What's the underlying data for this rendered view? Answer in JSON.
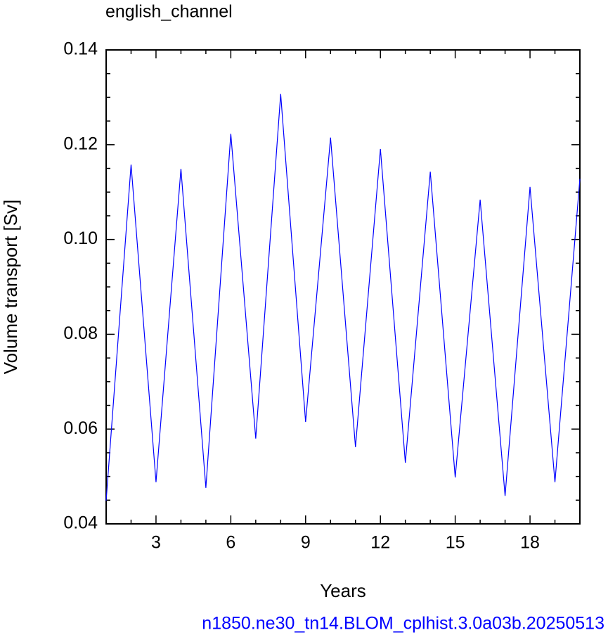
{
  "chart_data": {
    "type": "line",
    "title": "english_channel",
    "subtitle": "n1850.ne30_tn14.BLOM_cplhist.3.0a03b.20250513",
    "xlabel": "Years",
    "ylabel": "Volume transport [Sv]",
    "x": [
      1,
      2,
      3,
      4,
      5,
      6,
      7,
      8,
      9,
      10,
      11,
      12,
      13,
      14,
      15,
      16,
      17,
      18,
      19,
      20
    ],
    "series": [
      {
        "name": "english_channel",
        "color": "#0000ff",
        "values": [
          0.0449,
          0.1158,
          0.0488,
          0.1149,
          0.0476,
          0.1223,
          0.058,
          0.1307,
          0.0615,
          0.1215,
          0.0562,
          0.1191,
          0.0529,
          0.1143,
          0.0498,
          0.1084,
          0.0459,
          0.1111,
          0.0488,
          0.1128
        ]
      }
    ],
    "xlim": [
      1,
      20
    ],
    "xticks": [
      3,
      6,
      9,
      12,
      15,
      18
    ],
    "ylim": [
      0.04,
      0.14
    ],
    "yticks": [
      {
        "value": 0.04,
        "label": "0.04"
      },
      {
        "value": 0.06,
        "label": "0.06"
      },
      {
        "value": 0.08,
        "label": "0.08"
      },
      {
        "value": 0.1,
        "label": "0.10"
      },
      {
        "value": 0.12,
        "label": "0.12"
      },
      {
        "value": 0.14,
        "label": "0.14"
      }
    ]
  }
}
